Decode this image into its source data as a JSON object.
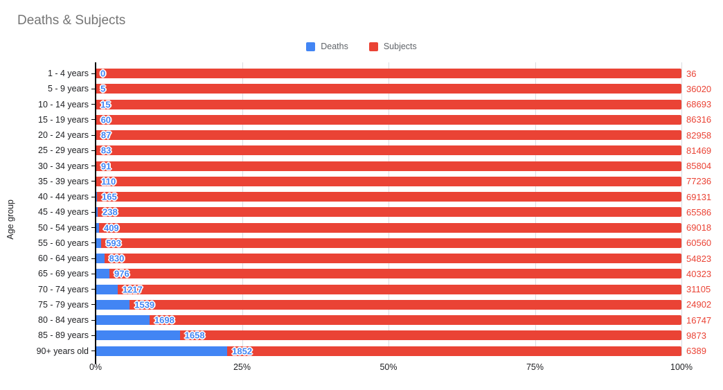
{
  "title": "Deaths & Subjects",
  "legend": [
    {
      "label": "Deaths",
      "color": "#4285F4"
    },
    {
      "label": "Subjects",
      "color": "#EA4335"
    }
  ],
  "axes": {
    "y_title": "Age group",
    "x_ticks": [
      "0%",
      "25%",
      "50%",
      "75%",
      "100%"
    ]
  },
  "chart_data": {
    "type": "bar",
    "orientation": "horizontal",
    "stacking": "100%",
    "title": "Deaths & Subjects",
    "xlabel": "",
    "ylabel": "Age group",
    "xlim": [
      0,
      100
    ],
    "x_tick_labels": [
      "0%",
      "25%",
      "50%",
      "75%",
      "100%"
    ],
    "legend_position": "top",
    "grid": "vertical",
    "categories": [
      "1 - 4 years",
      "5 - 9 years",
      "10 - 14 years",
      "15 - 19 years",
      "20 - 24 years",
      "25 - 29 years",
      "30 - 34 years",
      "35 - 39 years",
      "40 - 44 years",
      "45 - 49 years",
      "50 - 54 years",
      "55 - 60 years",
      "60 - 64 years",
      "65 - 69 years",
      "70 - 74 years",
      "75 - 79 years",
      "80 - 84 years",
      "85 - 89 years",
      "90+ years old"
    ],
    "series": [
      {
        "name": "Deaths",
        "color": "#4285F4",
        "values": [
          0,
          5,
          15,
          60,
          87,
          83,
          91,
          110,
          165,
          238,
          409,
          593,
          830,
          976,
          1217,
          1539,
          1698,
          1658,
          1852
        ]
      },
      {
        "name": "Subjects",
        "color": "#EA4335",
        "values": [
          36,
          36020,
          68693,
          86316,
          82958,
          81469,
          85804,
          77236,
          69131,
          65586,
          69018,
          60560,
          54823,
          40323,
          31105,
          24902,
          16747,
          9873,
          6389
        ]
      }
    ]
  }
}
